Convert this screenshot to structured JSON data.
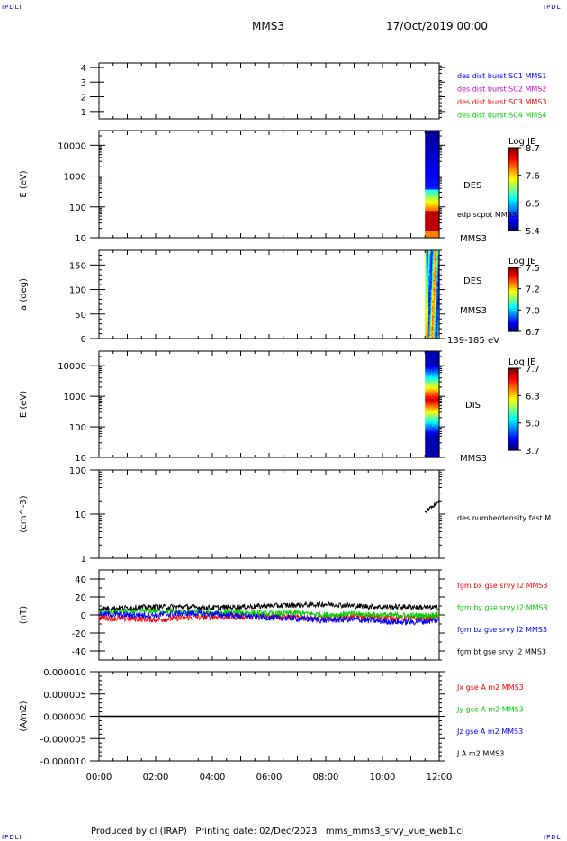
{
  "header": {
    "corner_left": "IPDLI",
    "corner_right": "IPDLI",
    "spacecraft": "MMS3",
    "date": "17/Oct/2019 00:00",
    "corner_bottom_left": "IPDLI",
    "corner_bottom_right": "IPDLI"
  },
  "footer": {
    "text": "Produced by cl (IRAP)   Printing date: 02/Dec/2023   mms_mms3_srvy_vue_web1.cl"
  },
  "colors": {
    "c1": "#0000ff",
    "c2": "#cc00cc",
    "c3": "#ff0000",
    "c4": "#00cc00",
    "black": "#000000"
  },
  "chart_data": [
    {
      "id": "burst",
      "type": "line",
      "xlim": [
        "00:00",
        "12:00"
      ],
      "xticks": [
        "00:00",
        "02:00",
        "04:00",
        "06:00",
        "08:00",
        "10:00",
        "12:00"
      ],
      "ylabel": "",
      "ylim": [
        0.5,
        4.3
      ],
      "yticks": [
        "1",
        "2",
        "3",
        "4"
      ],
      "legend": [
        {
          "label": "des dist burst SC1 MMS1",
          "color": "#0000ff"
        },
        {
          "label": "des dist burst SC2 MMS2",
          "color": "#cc00cc"
        },
        {
          "label": "des dist burst SC3 MMS3",
          "color": "#ff0000"
        },
        {
          "label": "des dist burst SC4 MMS4",
          "color": "#00cc00"
        }
      ]
    },
    {
      "id": "des_energy",
      "type": "heatmap",
      "ylabel": "E (eV)",
      "yscale": "log",
      "ylim": [
        10,
        30000
      ],
      "yticks": [
        "10",
        "100",
        "1000",
        "10000"
      ],
      "data_start": "11:30",
      "data_end": "12:00",
      "side_labels": [
        "DES",
        "edp scpot MMS3",
        "MMS3"
      ],
      "colorbar": {
        "title": "Log JE",
        "ticks": [
          "8.7",
          "7.6",
          "6.5",
          "5.4"
        ]
      }
    },
    {
      "id": "des_pitch",
      "type": "heatmap",
      "ylabel": "a (deg)",
      "ylim": [
        0,
        180
      ],
      "yticks": [
        "0",
        "50",
        "100",
        "150"
      ],
      "data_start": "11:30",
      "data_end": "12:00",
      "side_labels": [
        "DES",
        "MMS3",
        "139-185 eV"
      ],
      "colorbar": {
        "title": "Log JE",
        "ticks": [
          "7.5",
          "7.2",
          "7.0",
          "6.7"
        ]
      }
    },
    {
      "id": "dis_energy",
      "type": "heatmap",
      "ylabel": "E (eV)",
      "yscale": "log",
      "ylim": [
        10,
        30000
      ],
      "yticks": [
        "10",
        "100",
        "1000",
        "10000"
      ],
      "data_start": "11:30",
      "data_end": "12:00",
      "side_labels": [
        "DIS",
        "MMS3"
      ],
      "colorbar": {
        "title": "Log JE",
        "ticks": [
          "7.7",
          "6.3",
          "5.0",
          "3.7"
        ]
      }
    },
    {
      "id": "density",
      "type": "line",
      "ylabel": "(cm^-3)",
      "yscale": "log",
      "ylim": [
        1,
        100
      ],
      "yticks": [
        "1",
        "10",
        "100"
      ],
      "series": [
        {
          "name": "des numberdensity fast M",
          "color": "#000000",
          "x": [
            "11:30",
            "11:35",
            "11:40",
            "11:45",
            "11:50",
            "11:55",
            "12:00"
          ],
          "values": [
            11,
            13,
            14,
            15,
            17,
            19,
            21
          ]
        }
      ]
    },
    {
      "id": "fgm",
      "type": "line",
      "ylabel": "(nT)",
      "ylim": [
        -50,
        50
      ],
      "yticks": [
        "40",
        "20",
        "0",
        "-20",
        "-40"
      ],
      "x": [
        "00:00",
        "01:00",
        "02:00",
        "03:00",
        "04:00",
        "05:00",
        "06:00",
        "07:00",
        "08:00",
        "09:00",
        "10:00",
        "11:00",
        "12:00"
      ],
      "series": [
        {
          "name": "fgm bx gse srvy l2 MMS3",
          "color": "#ff0000",
          "values": [
            -3,
            -4,
            -5,
            -3,
            -2,
            -2,
            -1,
            -3,
            -4,
            -2,
            -3,
            -4,
            -3
          ]
        },
        {
          "name": "fgm by gse srvy l2 MMS3",
          "color": "#00cc00",
          "values": [
            3,
            4,
            5,
            3,
            2,
            3,
            1,
            2,
            0,
            1,
            0,
            -1,
            0
          ]
        },
        {
          "name": "fgm bz gse srvy l2 MMS3",
          "color": "#0000ff",
          "values": [
            1,
            0,
            0,
            2,
            1,
            -1,
            -3,
            -4,
            -6,
            -5,
            -7,
            -8,
            -6
          ]
        },
        {
          "name": "fgm bt gse srvy l2 MMS3",
          "color": "#000000",
          "values": [
            7,
            8,
            9,
            9,
            8,
            9,
            10,
            11,
            12,
            10,
            9,
            9,
            8
          ]
        }
      ]
    },
    {
      "id": "current",
      "type": "line",
      "ylabel": "(A/m2)",
      "ylim": [
        -1e-05,
        1e-05
      ],
      "yticks": [
        "0.000010",
        "0.000005",
        "0.000000",
        "-0.000005",
        "-0.000010"
      ],
      "series": [
        {
          "name": "Jx gse A m2 MMS3",
          "color": "#ff0000",
          "values": [
            0,
            0
          ]
        },
        {
          "name": "Jy gse A m2 MMS3",
          "color": "#00cc00",
          "values": [
            0,
            0
          ]
        },
        {
          "name": "Jz gse A m2 MMS3",
          "color": "#0000ff",
          "values": [
            0,
            0
          ]
        },
        {
          "name": "J A m2 MMS3",
          "color": "#000000",
          "values": [
            0,
            0
          ]
        }
      ]
    }
  ]
}
